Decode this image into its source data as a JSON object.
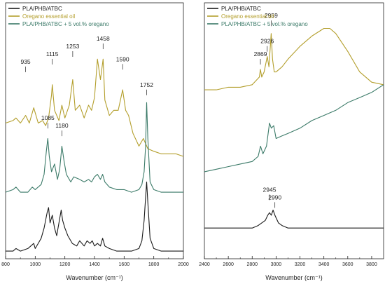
{
  "colors": {
    "pla": "#1a1a1a",
    "oregano": "#b39e2b",
    "blend": "#3b7a68",
    "axis": "#222222",
    "label": "#222222"
  },
  "chart_data": [
    {
      "type": "line",
      "xlabel": "Wavenumber (cm⁻¹)",
      "xlim": [
        800,
        2000
      ],
      "xticks": [
        "800",
        "1000",
        "1200",
        "1400",
        "1600",
        "1800",
        "2000"
      ],
      "legend": {
        "placement": "top-left",
        "entries": [
          "PLA/PHB/ATBC",
          "Oregano essential oil",
          "PLA/PHB/ATBC + 5 vol.% oregano"
        ]
      },
      "annotations": [
        "935",
        "1115",
        "1253",
        "1458",
        "1590",
        "1085",
        "1180",
        "1752"
      ],
      "series": [
        {
          "name": "Oregano essential oil",
          "x": [
            800,
            850,
            870,
            900,
            935,
            960,
            990,
            1020,
            1050,
            1070,
            1090,
            1110,
            1115,
            1130,
            1160,
            1180,
            1200,
            1230,
            1253,
            1270,
            1300,
            1330,
            1360,
            1380,
            1400,
            1420,
            1440,
            1458,
            1470,
            1500,
            1530,
            1560,
            1590,
            1610,
            1630,
            1660,
            1700,
            1730,
            1760,
            1800,
            1850,
            1900,
            1950,
            2000
          ],
          "values": [
            0.53,
            0.54,
            0.55,
            0.53,
            0.56,
            0.53,
            0.59,
            0.53,
            0.54,
            0.52,
            0.55,
            0.64,
            0.68,
            0.58,
            0.54,
            0.6,
            0.55,
            0.6,
            0.7,
            0.58,
            0.6,
            0.55,
            0.6,
            0.58,
            0.63,
            0.78,
            0.7,
            0.78,
            0.62,
            0.56,
            0.58,
            0.58,
            0.66,
            0.58,
            0.56,
            0.49,
            0.44,
            0.47,
            0.43,
            0.42,
            0.41,
            0.41,
            0.41,
            0.4
          ]
        },
        {
          "name": "PLA/PHB/ATBC + 5 vol.% oregano",
          "x": [
            800,
            850,
            870,
            900,
            950,
            980,
            1000,
            1040,
            1060,
            1075,
            1085,
            1095,
            1110,
            1130,
            1150,
            1165,
            1180,
            1195,
            1210,
            1240,
            1260,
            1300,
            1330,
            1360,
            1380,
            1400,
            1420,
            1440,
            1455,
            1470,
            1500,
            1550,
            1600,
            1650,
            1700,
            1720,
            1735,
            1745,
            1752,
            1760,
            1775,
            1800,
            1850,
            1900,
            1950,
            2000
          ],
          "values": [
            0.26,
            0.27,
            0.28,
            0.26,
            0.26,
            0.28,
            0.27,
            0.29,
            0.33,
            0.42,
            0.47,
            0.4,
            0.34,
            0.37,
            0.31,
            0.35,
            0.44,
            0.38,
            0.33,
            0.3,
            0.32,
            0.31,
            0.3,
            0.31,
            0.3,
            0.32,
            0.33,
            0.31,
            0.33,
            0.3,
            0.28,
            0.27,
            0.27,
            0.26,
            0.27,
            0.29,
            0.34,
            0.44,
            0.61,
            0.47,
            0.3,
            0.27,
            0.26,
            0.26,
            0.26,
            0.26
          ]
        },
        {
          "name": "PLA/PHB/ATBC",
          "x": [
            800,
            850,
            870,
            900,
            950,
            970,
            990,
            1000,
            1020,
            1040,
            1060,
            1080,
            1090,
            1100,
            1115,
            1130,
            1145,
            1160,
            1175,
            1185,
            1200,
            1220,
            1250,
            1280,
            1300,
            1330,
            1350,
            1370,
            1385,
            1400,
            1420,
            1440,
            1455,
            1470,
            1500,
            1550,
            1600,
            1650,
            1700,
            1720,
            1735,
            1745,
            1752,
            1760,
            1775,
            1800,
            1850,
            1900,
            1950,
            2000
          ],
          "values": [
            0.03,
            0.03,
            0.04,
            0.03,
            0.04,
            0.05,
            0.06,
            0.04,
            0.06,
            0.08,
            0.12,
            0.18,
            0.2,
            0.14,
            0.17,
            0.12,
            0.09,
            0.14,
            0.19,
            0.15,
            0.12,
            0.09,
            0.06,
            0.05,
            0.07,
            0.05,
            0.07,
            0.06,
            0.07,
            0.05,
            0.06,
            0.05,
            0.08,
            0.05,
            0.04,
            0.03,
            0.03,
            0.03,
            0.04,
            0.07,
            0.15,
            0.24,
            0.3,
            0.22,
            0.08,
            0.04,
            0.03,
            0.03,
            0.03,
            0.03
          ]
        }
      ]
    },
    {
      "type": "line",
      "xlabel": "Wavenumber (cm⁻¹)",
      "xlim": [
        2400,
        3900
      ],
      "xticks": [
        "2400",
        "2600",
        "2800",
        "3000",
        "3200",
        "3400",
        "3600",
        "3800"
      ],
      "legend": {
        "placement": "top-left",
        "entries": [
          "PLA/PHB/ATBC",
          "Oregano essential oil",
          "PLA/PHB/ATBC + 5 vol.% oregano"
        ]
      },
      "annotations": [
        "2869",
        "2926",
        "2959",
        "2945",
        "2990"
      ],
      "series": [
        {
          "name": "Oregano essential oil",
          "x": [
            2400,
            2500,
            2600,
            2700,
            2800,
            2860,
            2869,
            2880,
            2900,
            2926,
            2940,
            2959,
            2970,
            2985,
            3000,
            3050,
            3100,
            3200,
            3300,
            3400,
            3450,
            3500,
            3600,
            3700,
            3800,
            3900
          ],
          "values": [
            0.66,
            0.66,
            0.67,
            0.67,
            0.68,
            0.71,
            0.74,
            0.71,
            0.73,
            0.79,
            0.75,
            0.88,
            0.78,
            0.73,
            0.73,
            0.75,
            0.78,
            0.83,
            0.87,
            0.9,
            0.9,
            0.88,
            0.81,
            0.73,
            0.69,
            0.68
          ]
        },
        {
          "name": "PLA/PHB/ATBC + 5 vol.% oregano",
          "x": [
            2400,
            2500,
            2600,
            2700,
            2800,
            2850,
            2870,
            2890,
            2920,
            2945,
            2960,
            2980,
            3000,
            3050,
            3100,
            3200,
            3300,
            3400,
            3500,
            3600,
            3700,
            3800,
            3900
          ],
          "values": [
            0.34,
            0.35,
            0.36,
            0.37,
            0.38,
            0.4,
            0.44,
            0.41,
            0.44,
            0.53,
            0.51,
            0.52,
            0.47,
            0.48,
            0.49,
            0.51,
            0.54,
            0.56,
            0.58,
            0.61,
            0.63,
            0.65,
            0.68
          ]
        },
        {
          "name": "PLA/PHB/ATBC",
          "x": [
            2400,
            2500,
            2600,
            2700,
            2800,
            2850,
            2880,
            2910,
            2930,
            2945,
            2960,
            2975,
            2990,
            3000,
            3020,
            3050,
            3100,
            3200,
            3300,
            3400,
            3500,
            3600,
            3700,
            3800,
            3900
          ],
          "values": [
            0.12,
            0.12,
            0.12,
            0.12,
            0.12,
            0.13,
            0.14,
            0.15,
            0.17,
            0.18,
            0.17,
            0.19,
            0.17,
            0.16,
            0.14,
            0.13,
            0.12,
            0.12,
            0.12,
            0.12,
            0.12,
            0.12,
            0.12,
            0.12,
            0.12
          ]
        }
      ]
    }
  ]
}
